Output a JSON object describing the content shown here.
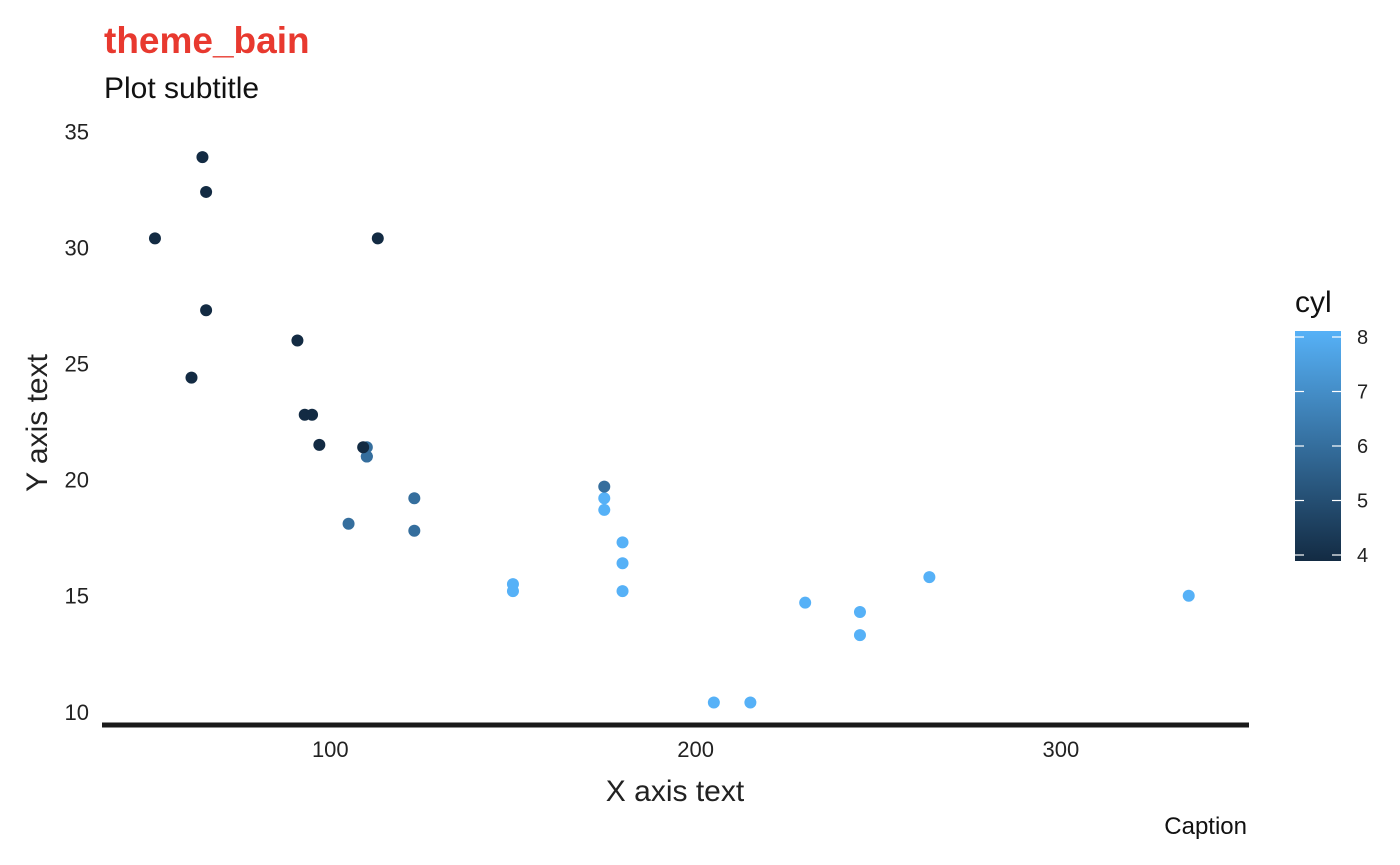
{
  "chart_data": {
    "type": "scatter",
    "title": "theme_bain",
    "subtitle": "Plot subtitle",
    "xlabel": "X axis text",
    "ylabel": "Y axis text",
    "caption": "Caption",
    "xlim": [
      37.5,
      351.5
    ],
    "ylim": [
      9.3,
      35.5
    ],
    "x_ticks": [
      100,
      200,
      300
    ],
    "y_ticks": [
      10,
      15,
      20,
      25,
      30,
      35
    ],
    "grid": false,
    "legend": {
      "title": "cyl",
      "type": "colorbar",
      "position": "right",
      "range": [
        4,
        8
      ],
      "ticks": [
        4,
        5,
        6,
        7,
        8
      ],
      "color_low": "#132B43",
      "color_high": "#56B1F7"
    },
    "colors": {
      "title": "#E8392F",
      "axis_line": "#1a1a1a"
    },
    "points": [
      {
        "x": 110,
        "y": 21.0,
        "cyl": 6
      },
      {
        "x": 110,
        "y": 21.0,
        "cyl": 6
      },
      {
        "x": 93,
        "y": 22.8,
        "cyl": 4
      },
      {
        "x": 110,
        "y": 21.4,
        "cyl": 6
      },
      {
        "x": 175,
        "y": 18.7,
        "cyl": 8
      },
      {
        "x": 105,
        "y": 18.1,
        "cyl": 6
      },
      {
        "x": 245,
        "y": 14.3,
        "cyl": 8
      },
      {
        "x": 62,
        "y": 24.4,
        "cyl": 4
      },
      {
        "x": 95,
        "y": 22.8,
        "cyl": 4
      },
      {
        "x": 123,
        "y": 19.2,
        "cyl": 6
      },
      {
        "x": 123,
        "y": 17.8,
        "cyl": 6
      },
      {
        "x": 180,
        "y": 16.4,
        "cyl": 8
      },
      {
        "x": 180,
        "y": 17.3,
        "cyl": 8
      },
      {
        "x": 180,
        "y": 15.2,
        "cyl": 8
      },
      {
        "x": 205,
        "y": 10.4,
        "cyl": 8
      },
      {
        "x": 215,
        "y": 10.4,
        "cyl": 8
      },
      {
        "x": 230,
        "y": 14.7,
        "cyl": 8
      },
      {
        "x": 66,
        "y": 32.4,
        "cyl": 4
      },
      {
        "x": 52,
        "y": 30.4,
        "cyl": 4
      },
      {
        "x": 65,
        "y": 33.9,
        "cyl": 4
      },
      {
        "x": 97,
        "y": 21.5,
        "cyl": 4
      },
      {
        "x": 150,
        "y": 15.5,
        "cyl": 8
      },
      {
        "x": 150,
        "y": 15.2,
        "cyl": 8
      },
      {
        "x": 245,
        "y": 13.3,
        "cyl": 8
      },
      {
        "x": 175,
        "y": 19.2,
        "cyl": 8
      },
      {
        "x": 66,
        "y": 27.3,
        "cyl": 4
      },
      {
        "x": 91,
        "y": 26.0,
        "cyl": 4
      },
      {
        "x": 113,
        "y": 30.4,
        "cyl": 4
      },
      {
        "x": 264,
        "y": 15.8,
        "cyl": 8
      },
      {
        "x": 175,
        "y": 19.7,
        "cyl": 6
      },
      {
        "x": 335,
        "y": 15.0,
        "cyl": 8
      },
      {
        "x": 109,
        "y": 21.4,
        "cyl": 4
      }
    ]
  }
}
